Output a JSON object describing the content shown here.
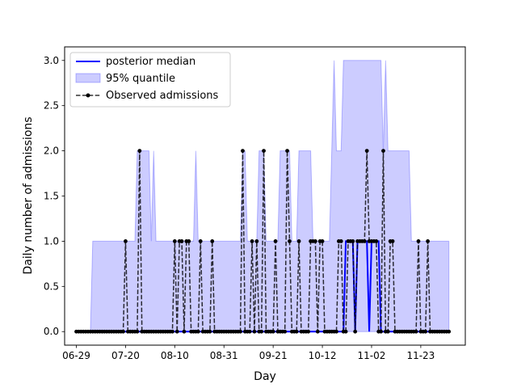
{
  "chart_data": {
    "type": "line",
    "title": "",
    "xlabel": "Day",
    "ylabel": "Daily number of admissions",
    "x_range": [
      "2020-06-24",
      "2020-12-12"
    ],
    "ylim": [
      -0.15,
      3.15
    ],
    "x_ticks": [
      {
        "date": "2020-06-29",
        "label": "06-29"
      },
      {
        "date": "2020-07-20",
        "label": "07-20"
      },
      {
        "date": "2020-08-10",
        "label": "08-10"
      },
      {
        "date": "2020-08-31",
        "label": "08-31"
      },
      {
        "date": "2020-09-21",
        "label": "09-21"
      },
      {
        "date": "2020-10-12",
        "label": "10-12"
      },
      {
        "date": "2020-11-02",
        "label": "11-02"
      },
      {
        "date": "2020-11-23",
        "label": "11-23"
      }
    ],
    "y_ticks": [
      {
        "value": 0.0,
        "label": "0.0"
      },
      {
        "value": 0.5,
        "label": "0.5"
      },
      {
        "value": 1.0,
        "label": "1.0"
      },
      {
        "value": 1.5,
        "label": "1.5"
      },
      {
        "value": 2.0,
        "label": "2.0"
      },
      {
        "value": 2.5,
        "label": "2.5"
      },
      {
        "value": 3.0,
        "label": "3.0"
      }
    ],
    "legend": {
      "position": "upper-left"
    },
    "colors": {
      "median": "#0000ff",
      "band": "#0000ff",
      "observed": "#000000"
    },
    "series": [
      {
        "name": "posterior median",
        "style": "solid",
        "color": "#0000ff",
        "points": [
          {
            "x": "2020-06-29",
            "y": 0
          },
          {
            "x": "2020-10-21",
            "y": 0
          },
          {
            "x": "2020-10-22",
            "y": 1
          },
          {
            "x": "2020-10-25",
            "y": 1
          },
          {
            "x": "2020-10-26",
            "y": 0
          },
          {
            "x": "2020-10-27",
            "y": 1
          },
          {
            "x": "2020-10-31",
            "y": 1
          },
          {
            "x": "2020-11-01",
            "y": 0
          },
          {
            "x": "2020-11-02",
            "y": 1
          },
          {
            "x": "2020-11-05",
            "y": 1
          },
          {
            "x": "2020-11-06",
            "y": 0
          },
          {
            "x": "2020-12-05",
            "y": 0
          }
        ]
      },
      {
        "name": "95% quantile",
        "style": "band",
        "color": "#0000ff",
        "lower": [
          {
            "x": "2020-06-29",
            "y": 0
          },
          {
            "x": "2020-12-05",
            "y": 0
          }
        ],
        "upper": [
          {
            "x": "2020-06-29",
            "y": 0
          },
          {
            "x": "2020-07-05",
            "y": 0
          },
          {
            "x": "2020-07-06",
            "y": 1
          },
          {
            "x": "2020-07-24",
            "y": 1
          },
          {
            "x": "2020-07-25",
            "y": 2
          },
          {
            "x": "2020-07-30",
            "y": 2
          },
          {
            "x": "2020-07-31",
            "y": 1
          },
          {
            "x": "2020-08-01",
            "y": 2
          },
          {
            "x": "2020-08-02",
            "y": 1
          },
          {
            "x": "2020-08-18",
            "y": 1
          },
          {
            "x": "2020-08-19",
            "y": 2
          },
          {
            "x": "2020-08-20",
            "y": 1
          },
          {
            "x": "2020-09-07",
            "y": 1
          },
          {
            "x": "2020-09-08",
            "y": 2
          },
          {
            "x": "2020-09-09",
            "y": 2
          },
          {
            "x": "2020-09-10",
            "y": 1
          },
          {
            "x": "2020-09-14",
            "y": 1
          },
          {
            "x": "2020-09-15",
            "y": 2
          },
          {
            "x": "2020-09-17",
            "y": 2
          },
          {
            "x": "2020-09-18",
            "y": 1
          },
          {
            "x": "2020-09-23",
            "y": 1
          },
          {
            "x": "2020-09-24",
            "y": 2
          },
          {
            "x": "2020-09-28",
            "y": 2
          },
          {
            "x": "2020-09-29",
            "y": 1
          },
          {
            "x": "2020-10-01",
            "y": 1
          },
          {
            "x": "2020-10-02",
            "y": 2
          },
          {
            "x": "2020-10-07",
            "y": 2
          },
          {
            "x": "2020-10-08",
            "y": 1
          },
          {
            "x": "2020-10-15",
            "y": 1
          },
          {
            "x": "2020-10-16",
            "y": 2
          },
          {
            "x": "2020-10-17",
            "y": 3
          },
          {
            "x": "2020-10-18",
            "y": 2
          },
          {
            "x": "2020-10-20",
            "y": 2
          },
          {
            "x": "2020-10-21",
            "y": 3
          },
          {
            "x": "2020-11-06",
            "y": 3
          },
          {
            "x": "2020-11-07",
            "y": 2
          },
          {
            "x": "2020-11-08",
            "y": 3
          },
          {
            "x": "2020-11-09",
            "y": 2
          },
          {
            "x": "2020-11-18",
            "y": 2
          },
          {
            "x": "2020-11-19",
            "y": 1
          },
          {
            "x": "2020-12-05",
            "y": 1
          }
        ]
      },
      {
        "name": "Observed admissions",
        "style": "dashed-dotted-markers",
        "color": "#000000",
        "start": "2020-06-29",
        "nonzero": [
          {
            "x": "2020-07-20",
            "y": 1
          },
          {
            "x": "2020-07-26",
            "y": 2
          },
          {
            "x": "2020-08-10",
            "y": 1
          },
          {
            "x": "2020-08-12",
            "y": 1
          },
          {
            "x": "2020-08-13",
            "y": 1
          },
          {
            "x": "2020-08-15",
            "y": 1
          },
          {
            "x": "2020-08-16",
            "y": 1
          },
          {
            "x": "2020-08-21",
            "y": 1
          },
          {
            "x": "2020-08-26",
            "y": 1
          },
          {
            "x": "2020-09-08",
            "y": 2
          },
          {
            "x": "2020-09-12",
            "y": 1
          },
          {
            "x": "2020-09-14",
            "y": 1
          },
          {
            "x": "2020-09-17",
            "y": 2
          },
          {
            "x": "2020-09-22",
            "y": 1
          },
          {
            "x": "2020-09-27",
            "y": 2
          },
          {
            "x": "2020-09-28",
            "y": 1
          },
          {
            "x": "2020-10-02",
            "y": 1
          },
          {
            "x": "2020-10-07",
            "y": 1
          },
          {
            "x": "2020-10-08",
            "y": 1
          },
          {
            "x": "2020-10-09",
            "y": 1
          },
          {
            "x": "2020-10-11",
            "y": 1
          },
          {
            "x": "2020-10-12",
            "y": 1
          },
          {
            "x": "2020-10-19",
            "y": 1
          },
          {
            "x": "2020-10-20",
            "y": 1
          },
          {
            "x": "2020-10-23",
            "y": 1
          },
          {
            "x": "2020-10-24",
            "y": 1
          },
          {
            "x": "2020-10-25",
            "y": 1
          },
          {
            "x": "2020-10-27",
            "y": 1
          },
          {
            "x": "2020-10-28",
            "y": 1
          },
          {
            "x": "2020-10-29",
            "y": 1
          },
          {
            "x": "2020-10-30",
            "y": 1
          },
          {
            "x": "2020-10-31",
            "y": 2
          },
          {
            "x": "2020-11-01",
            "y": 1
          },
          {
            "x": "2020-11-02",
            "y": 1
          },
          {
            "x": "2020-11-03",
            "y": 1
          },
          {
            "x": "2020-11-04",
            "y": 1
          },
          {
            "x": "2020-11-07",
            "y": 2
          },
          {
            "x": "2020-11-10",
            "y": 1
          },
          {
            "x": "2020-11-11",
            "y": 1
          },
          {
            "x": "2020-11-22",
            "y": 1
          },
          {
            "x": "2020-11-26",
            "y": 1
          }
        ],
        "end": "2020-12-05"
      }
    ]
  }
}
